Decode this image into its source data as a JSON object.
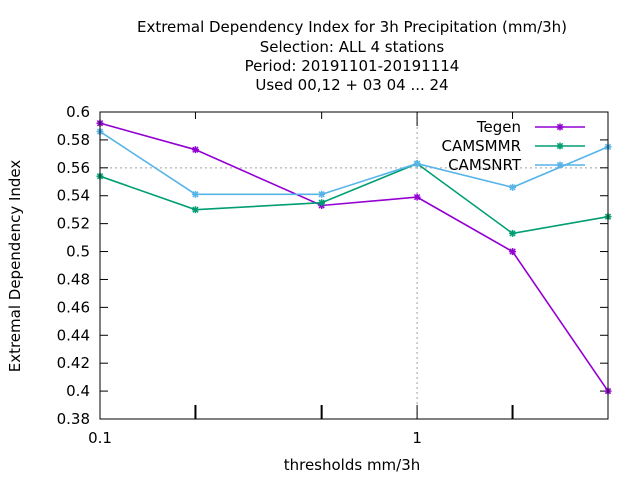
{
  "chart_data": {
    "type": "line",
    "title_lines": [
      "Extremal Dependency Index  for 3h Precipitation (mm/3h)",
      "Selection: ALL      4 stations",
      "Period: 20191101-20191114",
      "Used  00,12  + 03 04 ... 24"
    ],
    "xlabel": "thresholds mm/3h",
    "ylabel": "Extremal Dependency Index",
    "x_scale": "log",
    "xlim": [
      0.1,
      4
    ],
    "ylim": [
      0.38,
      0.6
    ],
    "x_tick_labels": [
      {
        "value": 0.1,
        "label": "0.1"
      },
      {
        "value": 1,
        "label": "1"
      }
    ],
    "x_minor_ticks": [
      0.2,
      0.5,
      2
    ],
    "y_ticks": [
      0.38,
      0.4,
      0.42,
      0.44,
      0.46,
      0.48,
      0.5,
      0.52,
      0.54,
      0.56,
      0.58,
      0.6
    ],
    "y_tick_labels": [
      "0.38",
      "0.4",
      "0.42",
      "0.44",
      "0.46",
      "0.48",
      "0.5",
      "0.52",
      "0.54",
      "0.56",
      "0.58",
      "0.6"
    ],
    "x_grid_values": [
      1
    ],
    "y_grid_values": [
      0.56
    ],
    "legend_position": "top-right",
    "x": [
      0.1,
      0.2,
      0.5,
      1,
      2,
      4
    ],
    "series": [
      {
        "name": "Tegen",
        "color": "#9400d3",
        "values": [
          0.592,
          0.573,
          0.533,
          0.539,
          0.5,
          0.4
        ]
      },
      {
        "name": "CAMSMMR",
        "color": "#009e73",
        "values": [
          0.554,
          0.53,
          0.535,
          0.563,
          0.513,
          0.525
        ]
      },
      {
        "name": "CAMSNRT",
        "color": "#56b4e9",
        "values": [
          0.586,
          0.541,
          0.541,
          0.563,
          0.546,
          0.575
        ]
      }
    ]
  }
}
